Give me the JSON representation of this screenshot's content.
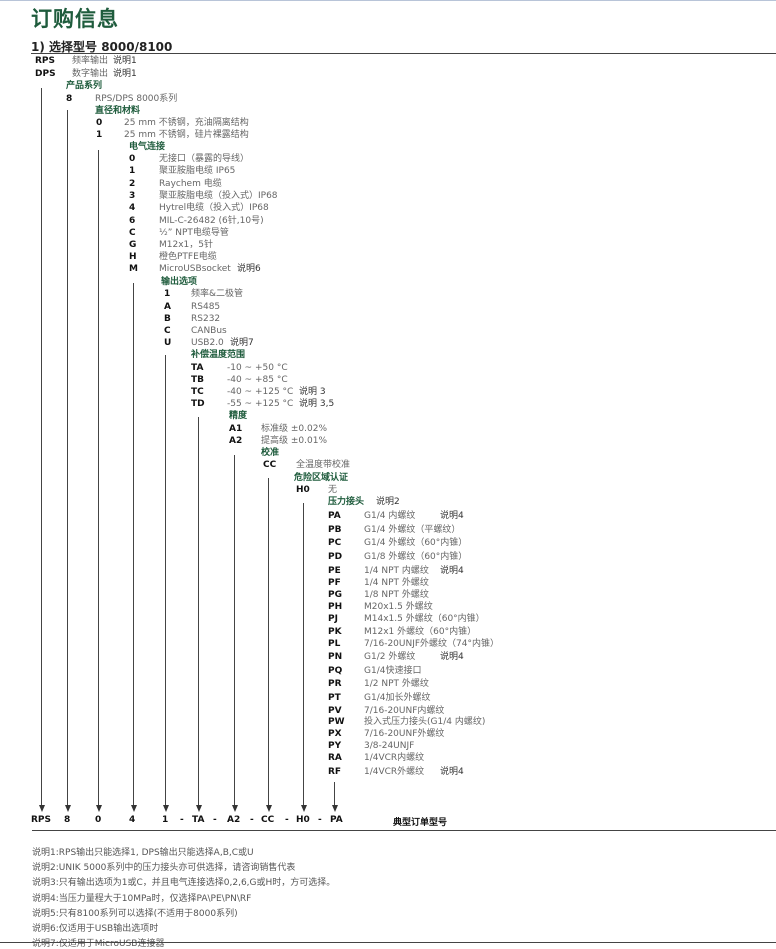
{
  "title": "订购信息",
  "subtitle": "1) 选择型号 8000/8100",
  "root_options": [
    {
      "code": "RPS",
      "desc": "频率输出",
      "note": "说明1"
    },
    {
      "code": "DPS",
      "desc": "数字输出",
      "note": "说明1"
    }
  ],
  "levels": [
    {
      "header": "产品系列",
      "options": [
        {
          "code": "8",
          "desc": "RPS/DPS 8000系列"
        }
      ]
    },
    {
      "header": "直径和材料",
      "options": [
        {
          "code": "0",
          "desc": "25 mm 不锈钢，充油隔离结构"
        },
        {
          "code": "1",
          "desc": "25 mm 不锈钢，硅片裸露结构"
        }
      ]
    },
    {
      "header": "电气连接",
      "options": [
        {
          "code": "0",
          "desc": "无接口（暴露的导线）"
        },
        {
          "code": "1",
          "desc": "聚亚胺脂电缆 IP65"
        },
        {
          "code": "2",
          "desc": "Raychem 电缆"
        },
        {
          "code": "3",
          "desc": "聚亚胺脂电缆（投入式）IP68"
        },
        {
          "code": "4",
          "desc": "Hytrel电缆（投入式）IP68"
        },
        {
          "code": "6",
          "desc": "MIL-C-26482 (6针,10号)"
        },
        {
          "code": "C",
          "desc": "½”  NPT电缆导管"
        },
        {
          "code": "G",
          "desc": "M12x1，5针"
        },
        {
          "code": "H",
          "desc": "橙色PTFE电缆"
        },
        {
          "code": "M",
          "desc": "MicroUSBsocket",
          "note": "说明6"
        }
      ]
    },
    {
      "header": "输出选项",
      "options": [
        {
          "code": "1",
          "desc": "频率&二极管"
        },
        {
          "code": "A",
          "desc": "RS485"
        },
        {
          "code": "B",
          "desc": "RS232"
        },
        {
          "code": "C",
          "desc": "CANBus"
        },
        {
          "code": "U",
          "desc": "USB2.0",
          "note": "说明7"
        }
      ]
    },
    {
      "header": "补偿温度范围",
      "options": [
        {
          "code": "TA",
          "desc": "-10 ~ +50 °C"
        },
        {
          "code": "TB",
          "desc": "-40 ~ +85 °C"
        },
        {
          "code": "TC",
          "desc": "-40 ~ +125 °C",
          "note": "说明 3"
        },
        {
          "code": "TD",
          "desc": "-55 ~ +125 °C",
          "note": "说明 3,5"
        }
      ]
    },
    {
      "header": "精度",
      "options": [
        {
          "code": "A1",
          "desc": "标准级 ±0.02%"
        },
        {
          "code": "A2",
          "desc": "提高级 ±0.01%"
        }
      ]
    },
    {
      "header": "校准",
      "options": [
        {
          "code": "CC",
          "desc": "全温度带校准"
        }
      ]
    },
    {
      "header": "危险区域认证",
      "options": [
        {
          "code": "H0",
          "desc": "无"
        }
      ]
    },
    {
      "header": "压力接头",
      "header_note": "说明2",
      "options": [
        {
          "code": "PA",
          "desc": "G1/4 内螺纹",
          "note": "说明4"
        },
        {
          "code": "PB",
          "desc": "G1/4 外螺纹（平螺纹）"
        },
        {
          "code": "PC",
          "desc": "G1/4 外螺纹（60°内锥）"
        },
        {
          "code": "PD",
          "desc": "G1/8 外螺纹（60°内锥）"
        },
        {
          "code": "PE",
          "desc": "1/4 NPT 内螺纹",
          "note": "说明4"
        },
        {
          "code": "PF",
          "desc": "1/4 NPT 外螺纹"
        },
        {
          "code": "PG",
          "desc": "1/8 NPT 外螺纹"
        },
        {
          "code": "PH",
          "desc": "M20x1.5 外螺纹"
        },
        {
          "code": "PJ",
          "desc": "M14x1.5 外螺纹（60°内锥）"
        },
        {
          "code": "PK",
          "desc": "M12x1 外螺纹（60°内锥）"
        },
        {
          "code": "PL",
          "desc": "7/16-20UNJF外螺纹（74°内锥）"
        },
        {
          "code": "PN",
          "desc": "G1/2 外螺纹",
          "note": "说明4"
        },
        {
          "code": "PQ",
          "desc": "G1/4快速接口"
        },
        {
          "code": "PR",
          "desc": "1/2 NPT 外螺纹"
        },
        {
          "code": "PT",
          "desc": "G1/4加长外螺纹"
        },
        {
          "code": "PV",
          "desc": "7/16-20UNF内螺纹"
        },
        {
          "code": "PW",
          "desc": "投入式压力接头(G1/4 内螺纹)"
        },
        {
          "code": "PX",
          "desc": "7/16-20UNF外螺纹"
        },
        {
          "code": "PY",
          "desc": "3/8-24UNJF"
        },
        {
          "code": "RA",
          "desc": "1/4VCR内螺纹"
        },
        {
          "code": "RF",
          "desc": "1/4VCR外螺纹",
          "note": "说明4"
        }
      ]
    }
  ],
  "example": {
    "parts": [
      "RPS",
      "8",
      "0",
      "4",
      "1",
      "-",
      "TA",
      "-",
      "A2",
      "-",
      "CC",
      "-",
      "H0",
      "-",
      "PA"
    ],
    "label": "典型订单型号"
  },
  "footnotes": [
    "说明1:RPS输出只能选择1, DPS输出只能选择A,B,C或U",
    "说明2:UNIK 5000系列中的压力接头亦可供选择，请咨询销售代表",
    "说明3:只有输出选项为1或C，并且电气连接选择0,2,6,G或H时，方可选择。",
    "说明4:当压力量程大于10MPa时，仅选择PA\\PE\\PN\\RF",
    "说明5:只有8100系列可以选择(不适用于8000系列)",
    "说明6:仅适用于USB输出选项时",
    "说明7:仅适用于MicroUSB连接器"
  ],
  "colors": {
    "heading": "#1f5c3d",
    "code": "#111111",
    "text": "#666666"
  }
}
